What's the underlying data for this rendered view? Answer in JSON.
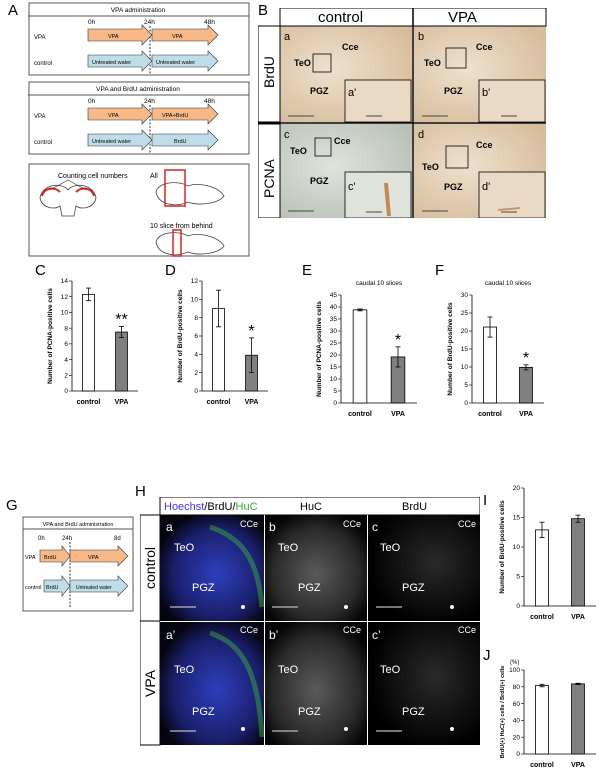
{
  "panel_letters": {
    "A": "A",
    "B": "B",
    "C": "C",
    "D": "D",
    "E": "E",
    "F": "F",
    "G": "G",
    "H": "H",
    "I": "I",
    "J": "J"
  },
  "panelA": {
    "box1": {
      "title": "VPA administration",
      "t0": "0h",
      "t1": "24h",
      "t2": "48h",
      "row1": {
        "label": "VPA",
        "a1": "VPA",
        "a2": "VPA"
      },
      "row2": {
        "label": "control",
        "a1": "Untreated water",
        "a2": "Untreated water"
      }
    },
    "box2": {
      "title": "VPA and BrdU administration",
      "t0": "0h",
      "t1": "24h",
      "t2": "48h",
      "row1": {
        "label": "VPA",
        "a1": "VPA",
        "a2": "VPA+BrdU"
      },
      "row2": {
        "label": "control",
        "a1": "Untreated water",
        "a2": "BrdU"
      }
    },
    "box3": {
      "counting": "Counting cell numbers",
      "all": "All",
      "slice": "10 slice from behind"
    }
  },
  "panelB": {
    "header_control": "control",
    "header_vpa": "VPA",
    "row_brdu": "BrdU",
    "row_pcna": "PCNA",
    "labels": {
      "a": "a",
      "b": "b",
      "c": "c",
      "d": "d",
      "a_prime": "a'",
      "b_prime": "b'",
      "c_prime": "c'",
      "d_prime": "d'",
      "cce": "Cce",
      "teo": "TeO",
      "pgz": "PGZ"
    }
  },
  "colors": {
    "arrow_orange": "#f6b987",
    "arrow_blue": "#bfdde9",
    "bar_gray": "#808080",
    "hoechst": "#3a3aff",
    "huc": "#2db32d",
    "tissue_tan": "#e7d3bb",
    "tissue_gray": "#cfd6cf"
  },
  "panelG": {
    "title": "VPA and BrdU administration",
    "t0": "0h",
    "t1": "24h",
    "t2": "8d",
    "row1": {
      "label": "VPA",
      "a1": "BrdU",
      "a2": "VPA"
    },
    "row2": {
      "label": "control",
      "a1": "BrdU",
      "a2": "Untreated water"
    }
  },
  "panelH": {
    "header1_part1": "Hoechst",
    "header1_sep1": "/",
    "header1_part2": "BrdU",
    "header1_sep2": "/",
    "header1_part3": "HuC",
    "header2": "HuC",
    "header3": "BrdU",
    "row1": "control",
    "row2": "VPA",
    "cells": {
      "a": "a",
      "b": "b",
      "c": "c",
      "a_prime": "a’",
      "b_prime": "b’",
      "c_prime": "c’",
      "cce": "CCe",
      "teo": "TeO",
      "pgz": "PGZ"
    }
  },
  "chart_data": [
    {
      "id": "C",
      "type": "bar",
      "categories": [
        "control",
        "VPA"
      ],
      "values": [
        12.3,
        7.5
      ],
      "errors": [
        0.8,
        0.7
      ],
      "ylabel": "Number of PCNA-positive cells",
      "ylim": [
        0,
        14
      ],
      "yticks": [
        0,
        2,
        4,
        6,
        8,
        10,
        12,
        14
      ],
      "annotation": "**",
      "title": ""
    },
    {
      "id": "D",
      "type": "bar",
      "categories": [
        "control",
        "VPA"
      ],
      "values": [
        9,
        3.9
      ],
      "errors": [
        2,
        1.9
      ],
      "ylabel": "Number of BrdU-positive cells",
      "ylim": [
        0,
        12
      ],
      "yticks": [
        0,
        2,
        4,
        6,
        8,
        10,
        12
      ],
      "annotation": "*",
      "title": ""
    },
    {
      "id": "E",
      "type": "bar",
      "categories": [
        "control",
        "VPA"
      ],
      "values": [
        38.8,
        19.2
      ],
      "errors": [
        0.4,
        4.2
      ],
      "ylabel": "Number of PCNA-positive cells",
      "ylim": [
        0,
        45
      ],
      "yticks": [
        0,
        5,
        10,
        15,
        20,
        25,
        30,
        35,
        40,
        45
      ],
      "annotation": "*",
      "title": "caudal 10 slices"
    },
    {
      "id": "F",
      "type": "bar",
      "categories": [
        "control",
        "VPA"
      ],
      "values": [
        21.1,
        9.9
      ],
      "errors": [
        2.8,
        0.7
      ],
      "ylabel": "Number of BrdU-positive cells",
      "ylim": [
        0,
        30
      ],
      "yticks": [
        0,
        5,
        10,
        15,
        20,
        25,
        30
      ],
      "annotation": "*",
      "title": "caudal 10 slices"
    },
    {
      "id": "I",
      "type": "bar",
      "categories": [
        "control",
        "VPA"
      ],
      "values": [
        12.9,
        14.8
      ],
      "errors": [
        1.3,
        0.6
      ],
      "ylabel": "Number of BrdU-positive cells",
      "ylim": [
        0,
        20
      ],
      "yticks": [
        0,
        5,
        10,
        15,
        20
      ],
      "annotation": "",
      "title": ""
    },
    {
      "id": "J",
      "type": "bar",
      "categories": [
        "control",
        "VPA"
      ],
      "values": [
        81.5,
        83.5
      ],
      "errors": [
        1.5,
        0.7
      ],
      "ylabel": "BrdU(+) HuC(+) cells / BrdU(+) cells",
      "ylim": [
        0,
        100
      ],
      "yticks": [
        0,
        20,
        40,
        60,
        80,
        100
      ],
      "annotation": "",
      "title": "",
      "unit": "(%)"
    }
  ]
}
